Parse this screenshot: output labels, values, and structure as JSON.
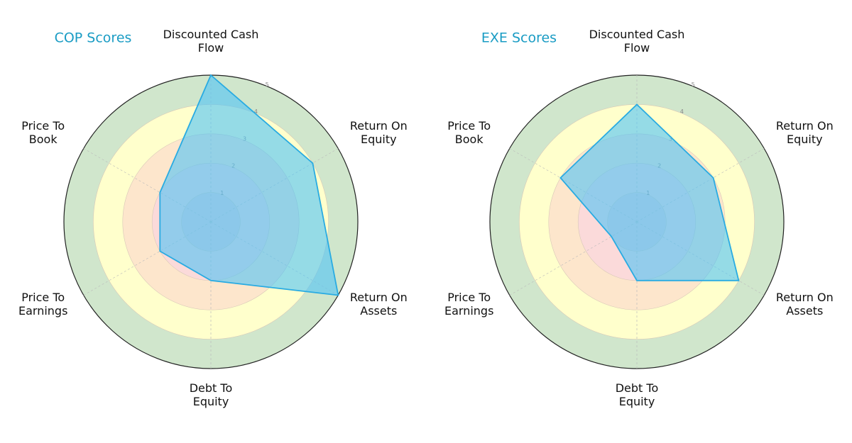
{
  "chart_data": [
    {
      "type": "radar",
      "title": "COP Scores",
      "categories": [
        "Discounted Cash Flow",
        "Return On Equity",
        "Return On Assets",
        "Debt To Equity",
        "Price To Earnings",
        "Price To Book"
      ],
      "values": [
        5,
        4,
        5,
        2,
        2,
        2
      ],
      "rlim": [
        0,
        5
      ],
      "rticks": [
        "1",
        "2",
        "3",
        "4",
        "5"
      ]
    },
    {
      "type": "radar",
      "title": "EXE Scores",
      "categories": [
        "Discounted Cash Flow",
        "Return On Equity",
        "Return On Assets",
        "Debt To Equity",
        "Price To Earnings",
        "Price To Book"
      ],
      "values": [
        4,
        3,
        4,
        2,
        1,
        3
      ],
      "rlim": [
        0,
        5
      ],
      "rticks": [
        "1",
        "2",
        "3",
        "4",
        "5"
      ]
    }
  ],
  "colors": {
    "title": "#1a9cc4",
    "series_fill": "#4fc3f7",
    "series_line": "#29abe2",
    "band_0_1": "#e9d0d6",
    "band_1_2": "#fbdada",
    "band_2_3": "#fde6cc",
    "band_3_4": "#ffffcc",
    "band_4_5": "#d0e6cc"
  }
}
